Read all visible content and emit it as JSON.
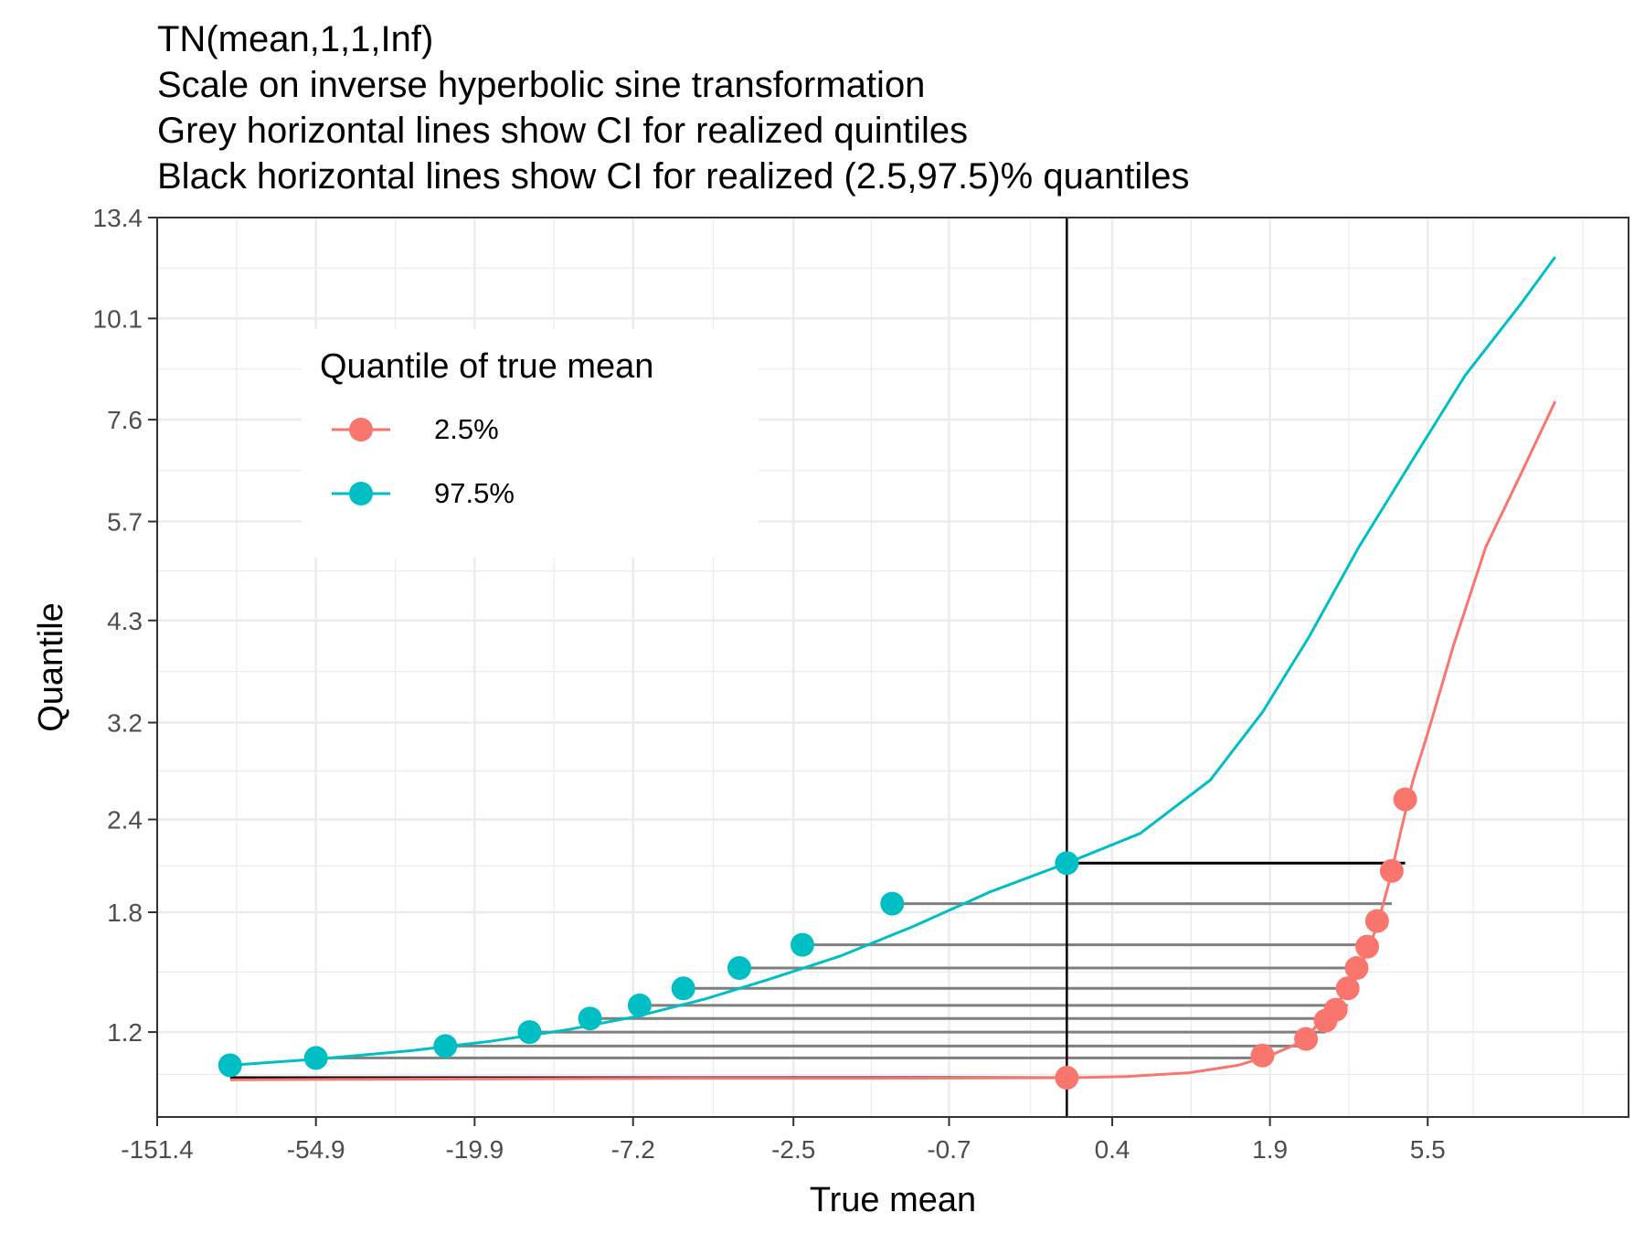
{
  "chart_data": {
    "type": "line",
    "title_lines": [
      "TN(mean,1,1,Inf)",
      "Scale on inverse hyperbolic sine transformation",
      "Grey horizontal lines show CI for realized quintiles",
      "Black horizontal lines show CI for realized (2.5,97.5)% quantiles"
    ],
    "xlabel": "True mean",
    "ylabel": "Quantile",
    "x_scale": "asinh",
    "y_scale": "asinh",
    "x_ticks": [
      "-151.4",
      "-54.9",
      "-19.9",
      "-7.2",
      "-2.5",
      "-0.7",
      "0.4",
      "1.9",
      "5.5"
    ],
    "y_ticks": [
      "1.2",
      "1.8",
      "2.4",
      "3.2",
      "4.3",
      "5.7",
      "7.6",
      "10.1",
      "13.4"
    ],
    "xlim": [
      -151.4,
      20
    ],
    "ylim": [
      0.86,
      13.4
    ],
    "grid": true,
    "legend": {
      "title": "Quantile of true mean",
      "position": "top-left",
      "entries": [
        {
          "label": "2.5%",
          "color": "#F8766D"
        },
        {
          "label": "97.5%",
          "color": "#00BFC4"
        }
      ]
    },
    "vertical_line_x": 0.1,
    "series": [
      {
        "name": "2.5%",
        "color": "#F8766D",
        "curve": [
          {
            "x": -95,
            "y": 1.002
          },
          {
            "x": -40,
            "y": 1.004
          },
          {
            "x": -15,
            "y": 1.006
          },
          {
            "x": -5,
            "y": 1.008
          },
          {
            "x": -1.5,
            "y": 1.008
          },
          {
            "x": 0.1,
            "y": 1.01
          },
          {
            "x": 0.5,
            "y": 1.015
          },
          {
            "x": 1.0,
            "y": 1.03
          },
          {
            "x": 1.5,
            "y": 1.06
          },
          {
            "x": 1.9,
            "y": 1.1
          },
          {
            "x": 2.4,
            "y": 1.16
          },
          {
            "x": 2.75,
            "y": 1.26
          },
          {
            "x": 3.05,
            "y": 1.33
          },
          {
            "x": 3.35,
            "y": 1.44
          },
          {
            "x": 3.65,
            "y": 1.56
          },
          {
            "x": 3.95,
            "y": 1.72
          },
          {
            "x": 4.3,
            "y": 2.0
          },
          {
            "x": 4.6,
            "y": 2.3
          },
          {
            "x": 5.0,
            "y": 2.7
          },
          {
            "x": 5.5,
            "y": 3.1
          },
          {
            "x": 6.5,
            "y": 4.0
          },
          {
            "x": 8,
            "y": 5.3
          },
          {
            "x": 10,
            "y": 6.5
          },
          {
            "x": 12.5,
            "y": 8.0
          }
        ],
        "points": [
          {
            "x": 0.1,
            "y": 1.01
          },
          {
            "x": 1.8,
            "y": 1.1
          },
          {
            "x": 2.45,
            "y": 1.17
          },
          {
            "x": 2.8,
            "y": 1.25
          },
          {
            "x": 3.0,
            "y": 1.3
          },
          {
            "x": 3.25,
            "y": 1.4
          },
          {
            "x": 3.45,
            "y": 1.5
          },
          {
            "x": 3.7,
            "y": 1.61
          },
          {
            "x": 3.95,
            "y": 1.75
          },
          {
            "x": 4.35,
            "y": 2.05
          },
          {
            "x": 4.75,
            "y": 2.55
          }
        ]
      },
      {
        "name": "97.5%",
        "color": "#00BFC4",
        "curve": [
          {
            "x": -95,
            "y": 1.06
          },
          {
            "x": -55,
            "y": 1.085
          },
          {
            "x": -30,
            "y": 1.12
          },
          {
            "x": -18,
            "y": 1.16
          },
          {
            "x": -11,
            "y": 1.21
          },
          {
            "x": -7,
            "y": 1.27
          },
          {
            "x": -4.5,
            "y": 1.35
          },
          {
            "x": -3,
            "y": 1.44
          },
          {
            "x": -1.8,
            "y": 1.56
          },
          {
            "x": -1,
            "y": 1.72
          },
          {
            "x": -0.4,
            "y": 1.92
          },
          {
            "x": 0.1,
            "y": 2.1
          },
          {
            "x": 0.6,
            "y": 2.3
          },
          {
            "x": 1.2,
            "y": 2.7
          },
          {
            "x": 1.8,
            "y": 3.3
          },
          {
            "x": 2.5,
            "y": 4.1
          },
          {
            "x": 3.5,
            "y": 5.3
          },
          {
            "x": 5,
            "y": 6.8
          },
          {
            "x": 7,
            "y": 8.6
          },
          {
            "x": 10,
            "y": 10.5
          },
          {
            "x": 12.5,
            "y": 12.0
          }
        ],
        "points": [
          {
            "x": -95,
            "y": 1.06
          },
          {
            "x": -54.9,
            "y": 1.09
          },
          {
            "x": -24,
            "y": 1.14
          },
          {
            "x": -14,
            "y": 1.2
          },
          {
            "x": -9.5,
            "y": 1.26
          },
          {
            "x": -6.9,
            "y": 1.32
          },
          {
            "x": -5.2,
            "y": 1.4
          },
          {
            "x": -3.6,
            "y": 1.5
          },
          {
            "x": -2.35,
            "y": 1.62
          },
          {
            "x": -1.2,
            "y": 1.85
          },
          {
            "x": 0.1,
            "y": 2.1
          }
        ]
      }
    ],
    "ci_segments": [
      {
        "x1": -95,
        "x2": 0.1,
        "y": 1.01,
        "color": "#000000"
      },
      {
        "x1": -54.9,
        "x2": 1.8,
        "y": 1.09,
        "color": "#7f7f7f"
      },
      {
        "x1": -24,
        "x2": 2.45,
        "y": 1.14,
        "color": "#7f7f7f"
      },
      {
        "x1": -14,
        "x2": 2.8,
        "y": 1.2,
        "color": "#7f7f7f"
      },
      {
        "x1": -9.5,
        "x2": 3.0,
        "y": 1.26,
        "color": "#7f7f7f"
      },
      {
        "x1": -6.9,
        "x2": 3.25,
        "y": 1.32,
        "color": "#7f7f7f"
      },
      {
        "x1": -5.2,
        "x2": 3.45,
        "y": 1.4,
        "color": "#7f7f7f"
      },
      {
        "x1": -3.6,
        "x2": 3.7,
        "y": 1.5,
        "color": "#7f7f7f"
      },
      {
        "x1": -2.35,
        "x2": 3.95,
        "y": 1.62,
        "color": "#7f7f7f"
      },
      {
        "x1": -1.2,
        "x2": 4.35,
        "y": 1.85,
        "color": "#7f7f7f"
      },
      {
        "x1": 0.1,
        "x2": 4.75,
        "y": 2.1,
        "color": "#000000"
      }
    ]
  }
}
